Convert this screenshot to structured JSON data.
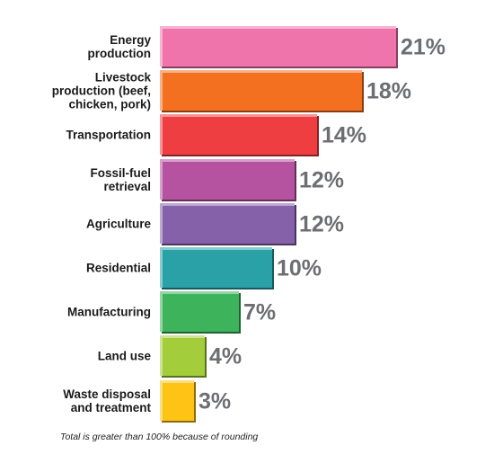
{
  "chart_data": {
    "type": "bar",
    "orientation": "horizontal",
    "categories": [
      "Energy production",
      "Livestock production (beef, chicken, pork)",
      "Transportation",
      "Fossil-fuel retrieval",
      "Agriculture",
      "Residential",
      "Manufacturing",
      "Land use",
      "Waste disposal and treatment"
    ],
    "category_lines": [
      [
        "Energy",
        "production"
      ],
      [
        "Livestock",
        "production (beef,",
        "chicken, pork)"
      ],
      [
        "Transportation"
      ],
      [
        "Fossil-fuel",
        "retrieval"
      ],
      [
        "Agriculture"
      ],
      [
        "Residential"
      ],
      [
        "Manufacturing"
      ],
      [
        "Land use"
      ],
      [
        "Waste disposal",
        "and treatment"
      ]
    ],
    "values": [
      21,
      18,
      14,
      12,
      12,
      10,
      7,
      4,
      3
    ],
    "value_labels": [
      "21%",
      "18%",
      "14%",
      "12%",
      "12%",
      "10%",
      "7%",
      "4%",
      "3%"
    ],
    "colors": [
      "#f074ac",
      "#f37021",
      "#ef3e42",
      "#b553a0",
      "#8561a9",
      "#2aa1a7",
      "#3db35b",
      "#a3cd3b",
      "#fdc315"
    ],
    "title": "",
    "xlabel": "",
    "ylabel": "",
    "xlim": [
      0,
      21
    ],
    "grid": false,
    "legend": "none",
    "footnote": "Total is greater than 100% because of rounding"
  }
}
